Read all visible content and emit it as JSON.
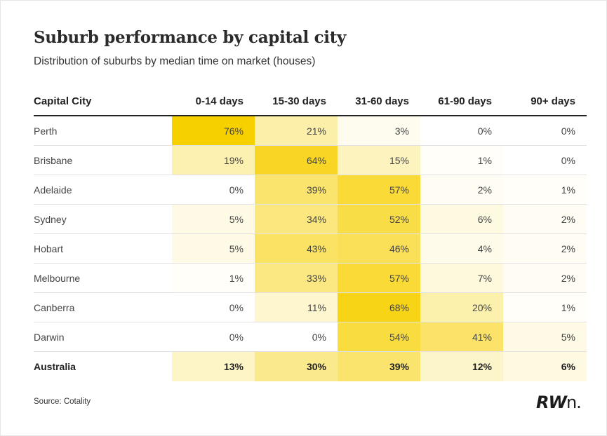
{
  "title": "Suburb performance by capital city",
  "subtitle": "Distribution of suburbs by median time on market (houses)",
  "source": "Source: Cotality",
  "logo_text": "RWn.",
  "heat_color_max": "#f7d000",
  "heat_color_min": "#ffffff",
  "chart_data": {
    "type": "heatmap",
    "title": "Suburb performance by capital city",
    "subtitle": "Distribution of suburbs by median time on market (houses)",
    "row_header": "Capital City",
    "columns": [
      "0-14 days",
      "15-30 days",
      "31-60 days",
      "61-90 days",
      "90+ days"
    ],
    "unit": "%",
    "rows": [
      {
        "name": "Perth",
        "values": [
          76,
          21,
          3,
          0,
          0
        ]
      },
      {
        "name": "Brisbane",
        "values": [
          19,
          64,
          15,
          1,
          0
        ]
      },
      {
        "name": "Adelaide",
        "values": [
          0,
          39,
          57,
          2,
          1
        ]
      },
      {
        "name": "Sydney",
        "values": [
          5,
          34,
          52,
          6,
          2
        ]
      },
      {
        "name": "Hobart",
        "values": [
          5,
          43,
          46,
          4,
          2
        ]
      },
      {
        "name": "Melbourne",
        "values": [
          1,
          33,
          57,
          7,
          2
        ]
      },
      {
        "name": "Canberra",
        "values": [
          0,
          11,
          68,
          20,
          1
        ]
      },
      {
        "name": "Darwin",
        "values": [
          0,
          0,
          54,
          41,
          5
        ]
      }
    ],
    "total": {
      "name": "Australia",
      "values": [
        13,
        30,
        39,
        12,
        6
      ]
    },
    "color_scale_max": 76
  }
}
